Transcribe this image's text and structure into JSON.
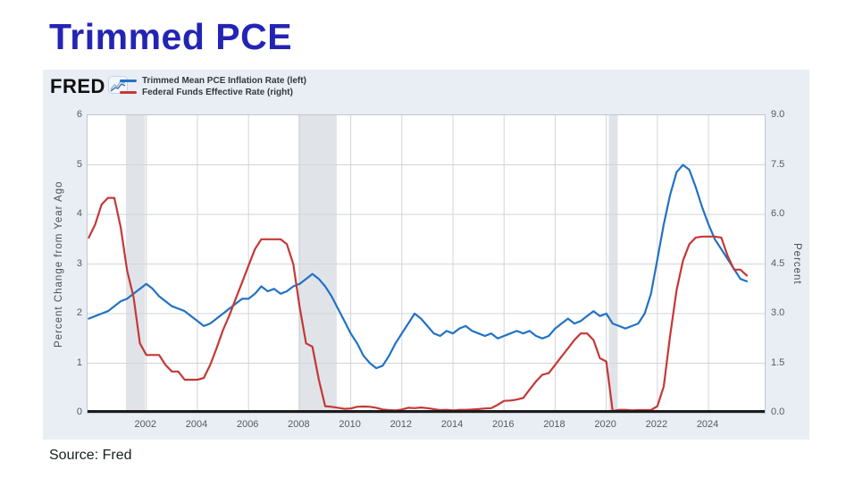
{
  "page": {
    "title": "Trimmed PCE",
    "source": "Source: Fred"
  },
  "fred": {
    "logo_text": "FRED"
  },
  "legend": {
    "items": [
      {
        "label": "Trimmed Mean PCE Inflation Rate (left)",
        "color": "#2272c3"
      },
      {
        "label": "Federal Funds Effective Rate (right)",
        "color": "#c43836"
      }
    ]
  },
  "colors": {
    "title_blue": "#2424b4",
    "widget_bg": "#e9eef5",
    "plot_bg": "#ffffff",
    "grid": "#d2d4d8",
    "recession_band": "#e0e4e9",
    "bottom_axis": "#1c1c1c",
    "blue_line": "#2272c3",
    "red_line": "#c43836"
  },
  "chart_data": {
    "type": "line",
    "title": "Trimmed PCE",
    "x_domain": [
      1999.7,
      2026.2
    ],
    "x_start": 1999.75,
    "x_step": 0.25,
    "x_ticks": [
      "2002",
      "2004",
      "2006",
      "2008",
      "2010",
      "2012",
      "2014",
      "2016",
      "2018",
      "2020",
      "2022",
      "2024"
    ],
    "x_tick_years": [
      2002,
      2004,
      2006,
      2008,
      2010,
      2012,
      2014,
      2016,
      2018,
      2020,
      2022,
      2024
    ],
    "grid": true,
    "legend_position": "top-left",
    "left_axis": {
      "label": "Percent Change from Year Ago",
      "range": [
        0,
        6
      ],
      "ticks": [
        0,
        1,
        2,
        3,
        4,
        5,
        6
      ],
      "tick_labels": [
        "0",
        "1",
        "2",
        "3",
        "4",
        "5",
        "6"
      ]
    },
    "right_axis": {
      "label": "Percent",
      "range": [
        0,
        9
      ],
      "ticks": [
        0,
        1.5,
        3,
        4.5,
        6,
        7.5,
        9
      ],
      "tick_labels": [
        "0.0",
        "1.5",
        "3.0",
        "4.5",
        "6.0",
        "7.5",
        "9.0"
      ]
    },
    "recession_bands": [
      [
        2001.2,
        2001.95
      ],
      [
        2007.95,
        2009.45
      ],
      [
        2020.1,
        2020.45
      ]
    ],
    "series": [
      {
        "name": "Trimmed Mean PCE Inflation Rate (left)",
        "axis": "left",
        "color": "#2272c3",
        "values": [
          1.9,
          1.95,
          2.0,
          2.05,
          2.15,
          2.25,
          2.3,
          2.4,
          2.5,
          2.6,
          2.5,
          2.35,
          2.25,
          2.15,
          2.1,
          2.05,
          1.95,
          1.85,
          1.75,
          1.8,
          1.9,
          2.0,
          2.1,
          2.2,
          2.3,
          2.3,
          2.4,
          2.55,
          2.45,
          2.5,
          2.4,
          2.45,
          2.55,
          2.6,
          2.7,
          2.8,
          2.7,
          2.55,
          2.35,
          2.1,
          1.85,
          1.6,
          1.4,
          1.15,
          1.0,
          0.9,
          0.95,
          1.15,
          1.4,
          1.6,
          1.8,
          2.0,
          1.9,
          1.75,
          1.6,
          1.55,
          1.65,
          1.6,
          1.7,
          1.75,
          1.65,
          1.6,
          1.55,
          1.6,
          1.5,
          1.55,
          1.6,
          1.65,
          1.6,
          1.65,
          1.55,
          1.5,
          1.55,
          1.7,
          1.8,
          1.9,
          1.8,
          1.85,
          1.95,
          2.05,
          1.95,
          2.0,
          1.8,
          1.75,
          1.7,
          1.75,
          1.8,
          2.0,
          2.4,
          3.1,
          3.8,
          4.4,
          4.85,
          5.0,
          4.9,
          4.55,
          4.15,
          3.8,
          3.5,
          3.3,
          3.1,
          2.9,
          2.7,
          2.65
        ]
      },
      {
        "name": "Federal Funds Effective Rate (right)",
        "axis": "right",
        "color": "#c43836",
        "values": [
          5.3,
          5.7,
          6.3,
          6.5,
          6.5,
          5.6,
          4.3,
          3.5,
          2.1,
          1.75,
          1.75,
          1.75,
          1.45,
          1.25,
          1.25,
          1.0,
          1.0,
          1.0,
          1.05,
          1.45,
          1.95,
          2.5,
          2.95,
          3.45,
          3.95,
          4.45,
          4.95,
          5.25,
          5.25,
          5.25,
          5.25,
          5.1,
          4.5,
          3.2,
          2.1,
          2.0,
          1.0,
          0.2,
          0.18,
          0.15,
          0.12,
          0.13,
          0.18,
          0.19,
          0.18,
          0.15,
          0.1,
          0.08,
          0.07,
          0.1,
          0.15,
          0.14,
          0.16,
          0.14,
          0.11,
          0.08,
          0.09,
          0.07,
          0.09,
          0.09,
          0.1,
          0.11,
          0.13,
          0.14,
          0.24,
          0.36,
          0.37,
          0.4,
          0.45,
          0.7,
          0.95,
          1.15,
          1.2,
          1.45,
          1.7,
          1.95,
          2.2,
          2.4,
          2.4,
          2.2,
          1.65,
          1.55,
          0.05,
          0.09,
          0.09,
          0.07,
          0.08,
          0.08,
          0.08,
          0.2,
          0.8,
          2.35,
          3.7,
          4.6,
          5.1,
          5.3,
          5.33,
          5.33,
          5.33,
          5.3,
          4.75,
          4.33,
          4.33,
          4.15
        ]
      }
    ]
  }
}
